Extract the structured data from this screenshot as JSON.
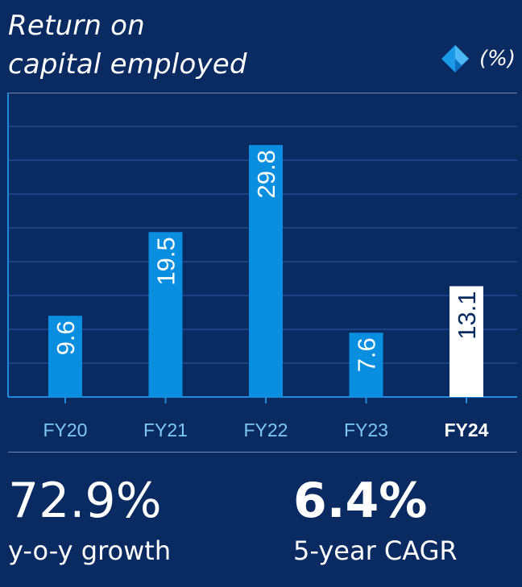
{
  "title": {
    "line1": "Return on",
    "line2": "capital employed"
  },
  "unit_label": "(%)",
  "icons": {
    "legend": "diamond-icon"
  },
  "colors": {
    "background": "#0a2a62",
    "bar": "#0a8fe0",
    "highlight_bar": "#ffffff",
    "axis": "#1e8be0",
    "grid": "#2a5aa8",
    "tick_label": "#7ec8f5",
    "highlight_tick_label": "#ffffff"
  },
  "chart_data": {
    "type": "bar",
    "categories": [
      "FY20",
      "FY21",
      "FY22",
      "FY23",
      "FY24"
    ],
    "values": [
      9.6,
      19.5,
      29.8,
      7.6,
      13.1
    ],
    "data_labels": [
      "9.6",
      "19.5",
      "29.8",
      "7.6",
      "13.1"
    ],
    "highlight": "FY24",
    "title": "Return on capital employed",
    "ylabel": "(%)",
    "ylim": [
      0,
      36
    ],
    "grid": true,
    "gridline_step": 4
  },
  "stats": [
    {
      "value": "72.9%",
      "label": "y-o-y growth"
    },
    {
      "value": "6.4%",
      "label": "5-year CAGR"
    }
  ]
}
